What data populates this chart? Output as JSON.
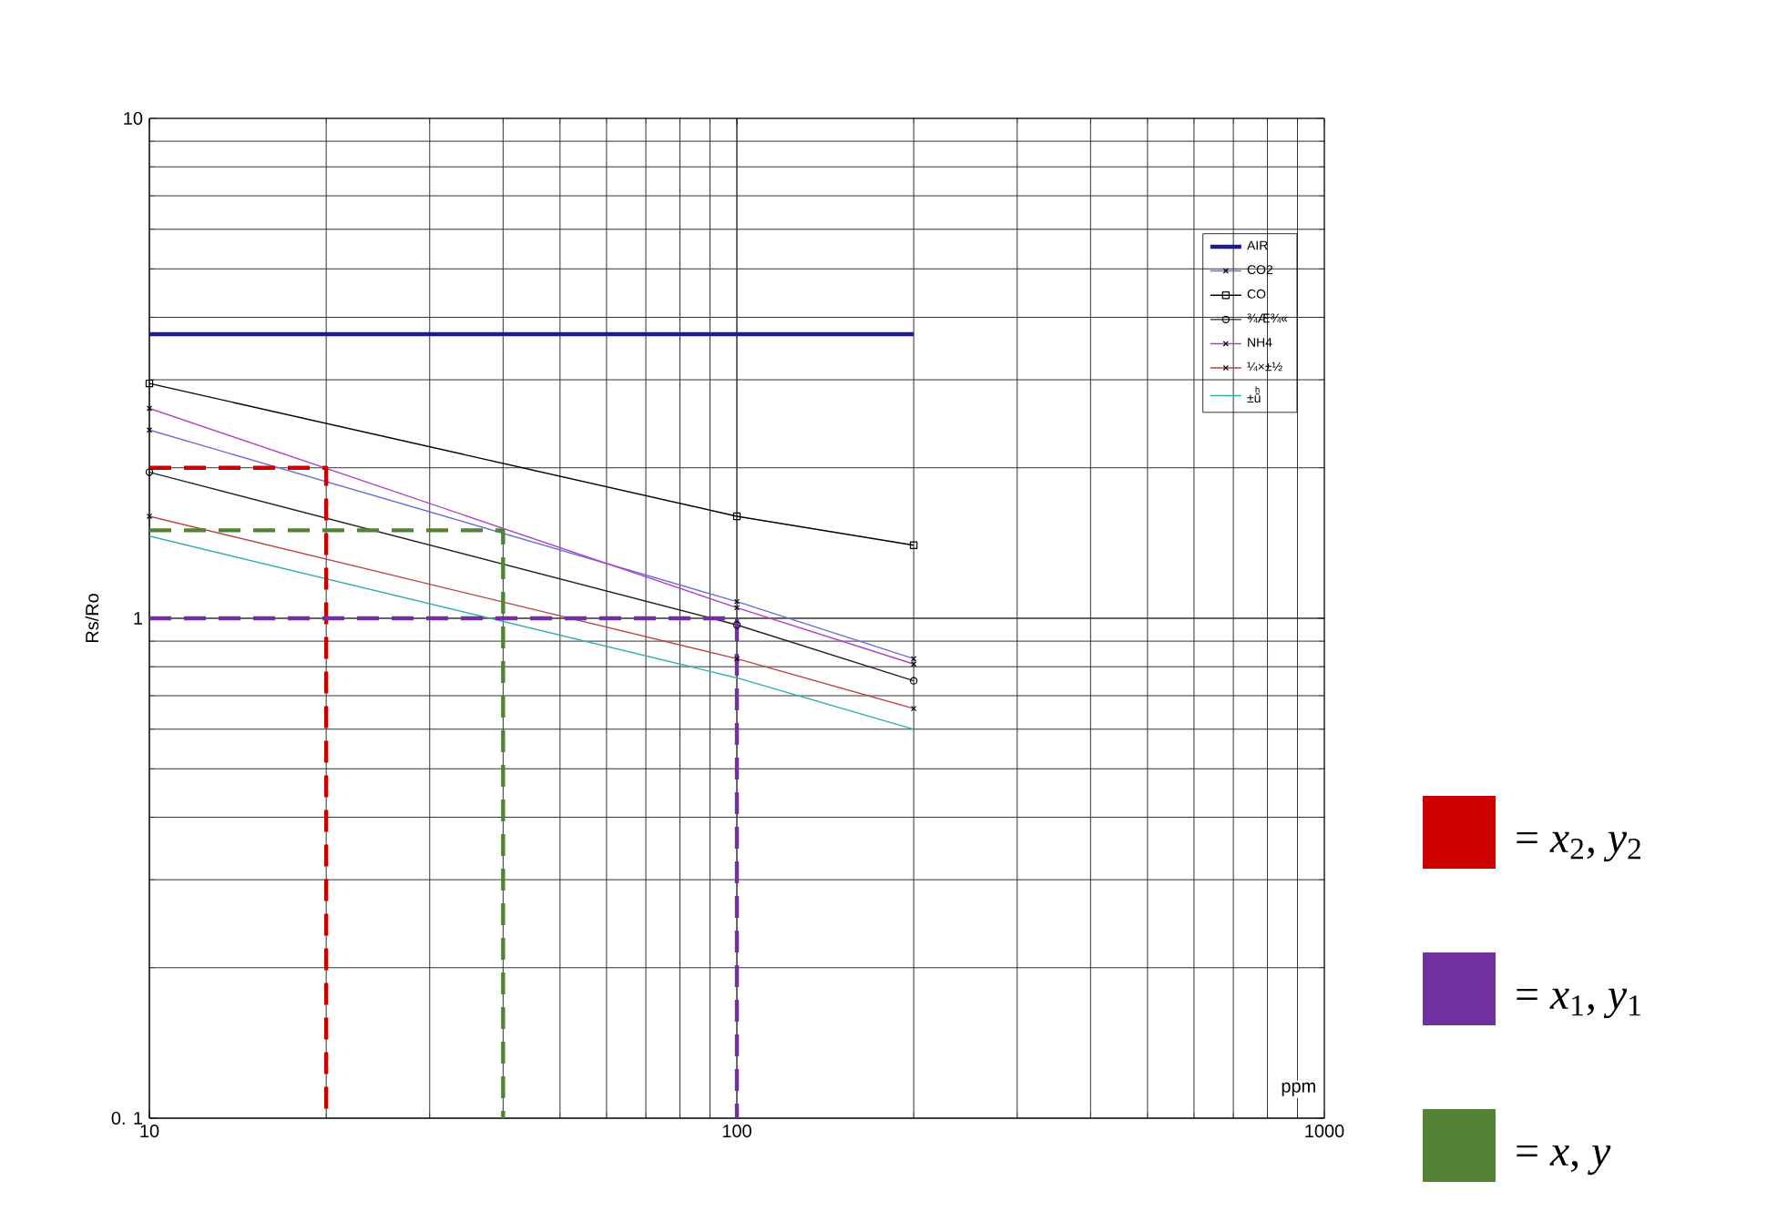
{
  "chart_data": {
    "type": "line",
    "xlabel": "ppm",
    "ylabel": "Rs/Ro",
    "log": "xy",
    "grid": true,
    "legend": "right",
    "xlim": [
      10,
      1000
    ],
    "ylim": [
      0.1,
      10
    ],
    "xticks": [
      10,
      100,
      1000
    ],
    "yticks": [
      {
        "value": 0.1,
        "label": "0. 1"
      },
      1,
      10
    ],
    "series": [
      {
        "name": "AIR",
        "color": "#1c1c8f",
        "x": [
          10,
          200
        ],
        "values": [
          3.7,
          3.7
        ],
        "marker": "none",
        "line_style": "solid"
      },
      {
        "name": "CO2",
        "color": "#6a6ad8",
        "x": [
          10,
          100,
          200
        ],
        "values": [
          2.38,
          1.08,
          0.83
        ],
        "marker": "cross",
        "line_style": "solid"
      },
      {
        "name": "CO",
        "color": "#000000",
        "x": [
          10,
          100,
          200
        ],
        "values": [
          2.95,
          1.6,
          1.4
        ],
        "marker": "square",
        "line_style": "solid"
      },
      {
        "name": "¾Æ¾«",
        "color": "#222222",
        "x": [
          10,
          100,
          200
        ],
        "values": [
          1.96,
          0.97,
          0.75
        ],
        "marker": "circle",
        "line_style": "solid"
      },
      {
        "name": "NH4",
        "color": "#b040c0",
        "x": [
          10,
          100,
          200
        ],
        "values": [
          2.63,
          1.05,
          0.81
        ],
        "marker": "cross",
        "line_style": "solid"
      },
      {
        "name": "¼×±½",
        "color": "#c04040",
        "x": [
          10,
          100,
          200
        ],
        "values": [
          1.6,
          0.83,
          0.66
        ],
        "marker": "cross",
        "line_style": "solid"
      },
      {
        "name": "±ûͪ",
        "color": "#30b0b0",
        "x": [
          10,
          100,
          200
        ],
        "values": [
          1.46,
          0.76,
          0.6
        ],
        "marker": "none",
        "line_style": "solid"
      },
      {
        "name": "= *x*$_{2}$, *y*$_{2}$",
        "color": "#cc0000",
        "x": [
          10,
          20,
          20
        ],
        "values": [
          2,
          2,
          0.1
        ],
        "marker": "none",
        "line_style": "dashed"
      },
      {
        "name": "= *x*$_{1}$, *y*$_{1}$",
        "color": "#7030a0",
        "x": [
          10,
          100,
          100
        ],
        "values": [
          1,
          1,
          0.1
        ],
        "marker": "none",
        "line_style": "dashed"
      },
      {
        "name": "= *x*, *y*",
        "color": "#538135",
        "x": [
          10,
          40,
          40
        ],
        "values": [
          1.5,
          1.5,
          0.1
        ],
        "marker": "none",
        "line_style": "dashed"
      }
    ]
  }
}
